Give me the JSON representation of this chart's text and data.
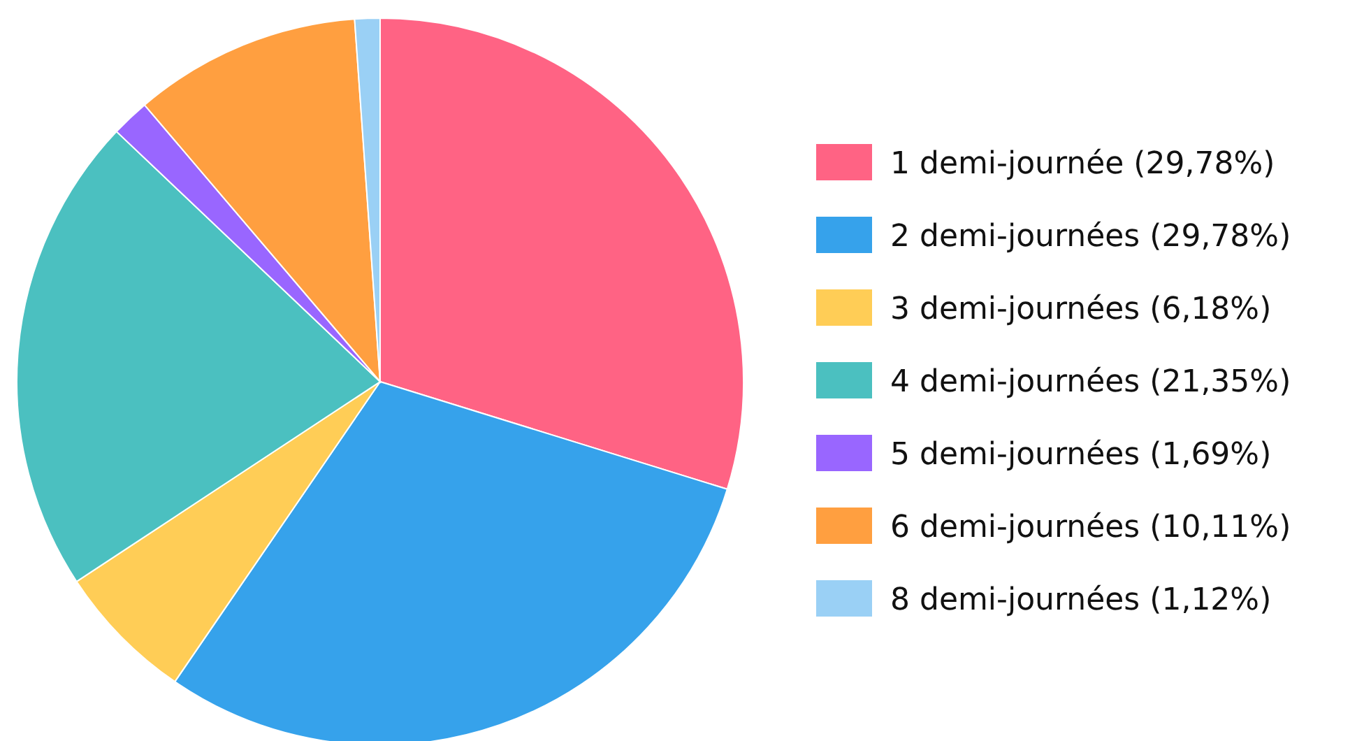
{
  "chart_data": {
    "type": "pie",
    "legend": "right",
    "categories": [
      "1 demi-journée (29,78%)",
      "2 demi-journées (29,78%)",
      "3 demi-journées (6,18%)",
      "4 demi-journées (21,35%)",
      "5 demi-journées (1,69%)",
      "6 demi-journées (10,11%)",
      "8 demi-journées (1,12%)"
    ],
    "values": [
      29.78,
      29.78,
      6.18,
      21.35,
      1.69,
      10.11,
      1.12
    ],
    "colors": [
      "#ff6384",
      "#36a2eb",
      "#ffcd56",
      "#4bc0c0",
      "#9966ff",
      "#ff9f40",
      "#9ad0f5"
    ]
  }
}
